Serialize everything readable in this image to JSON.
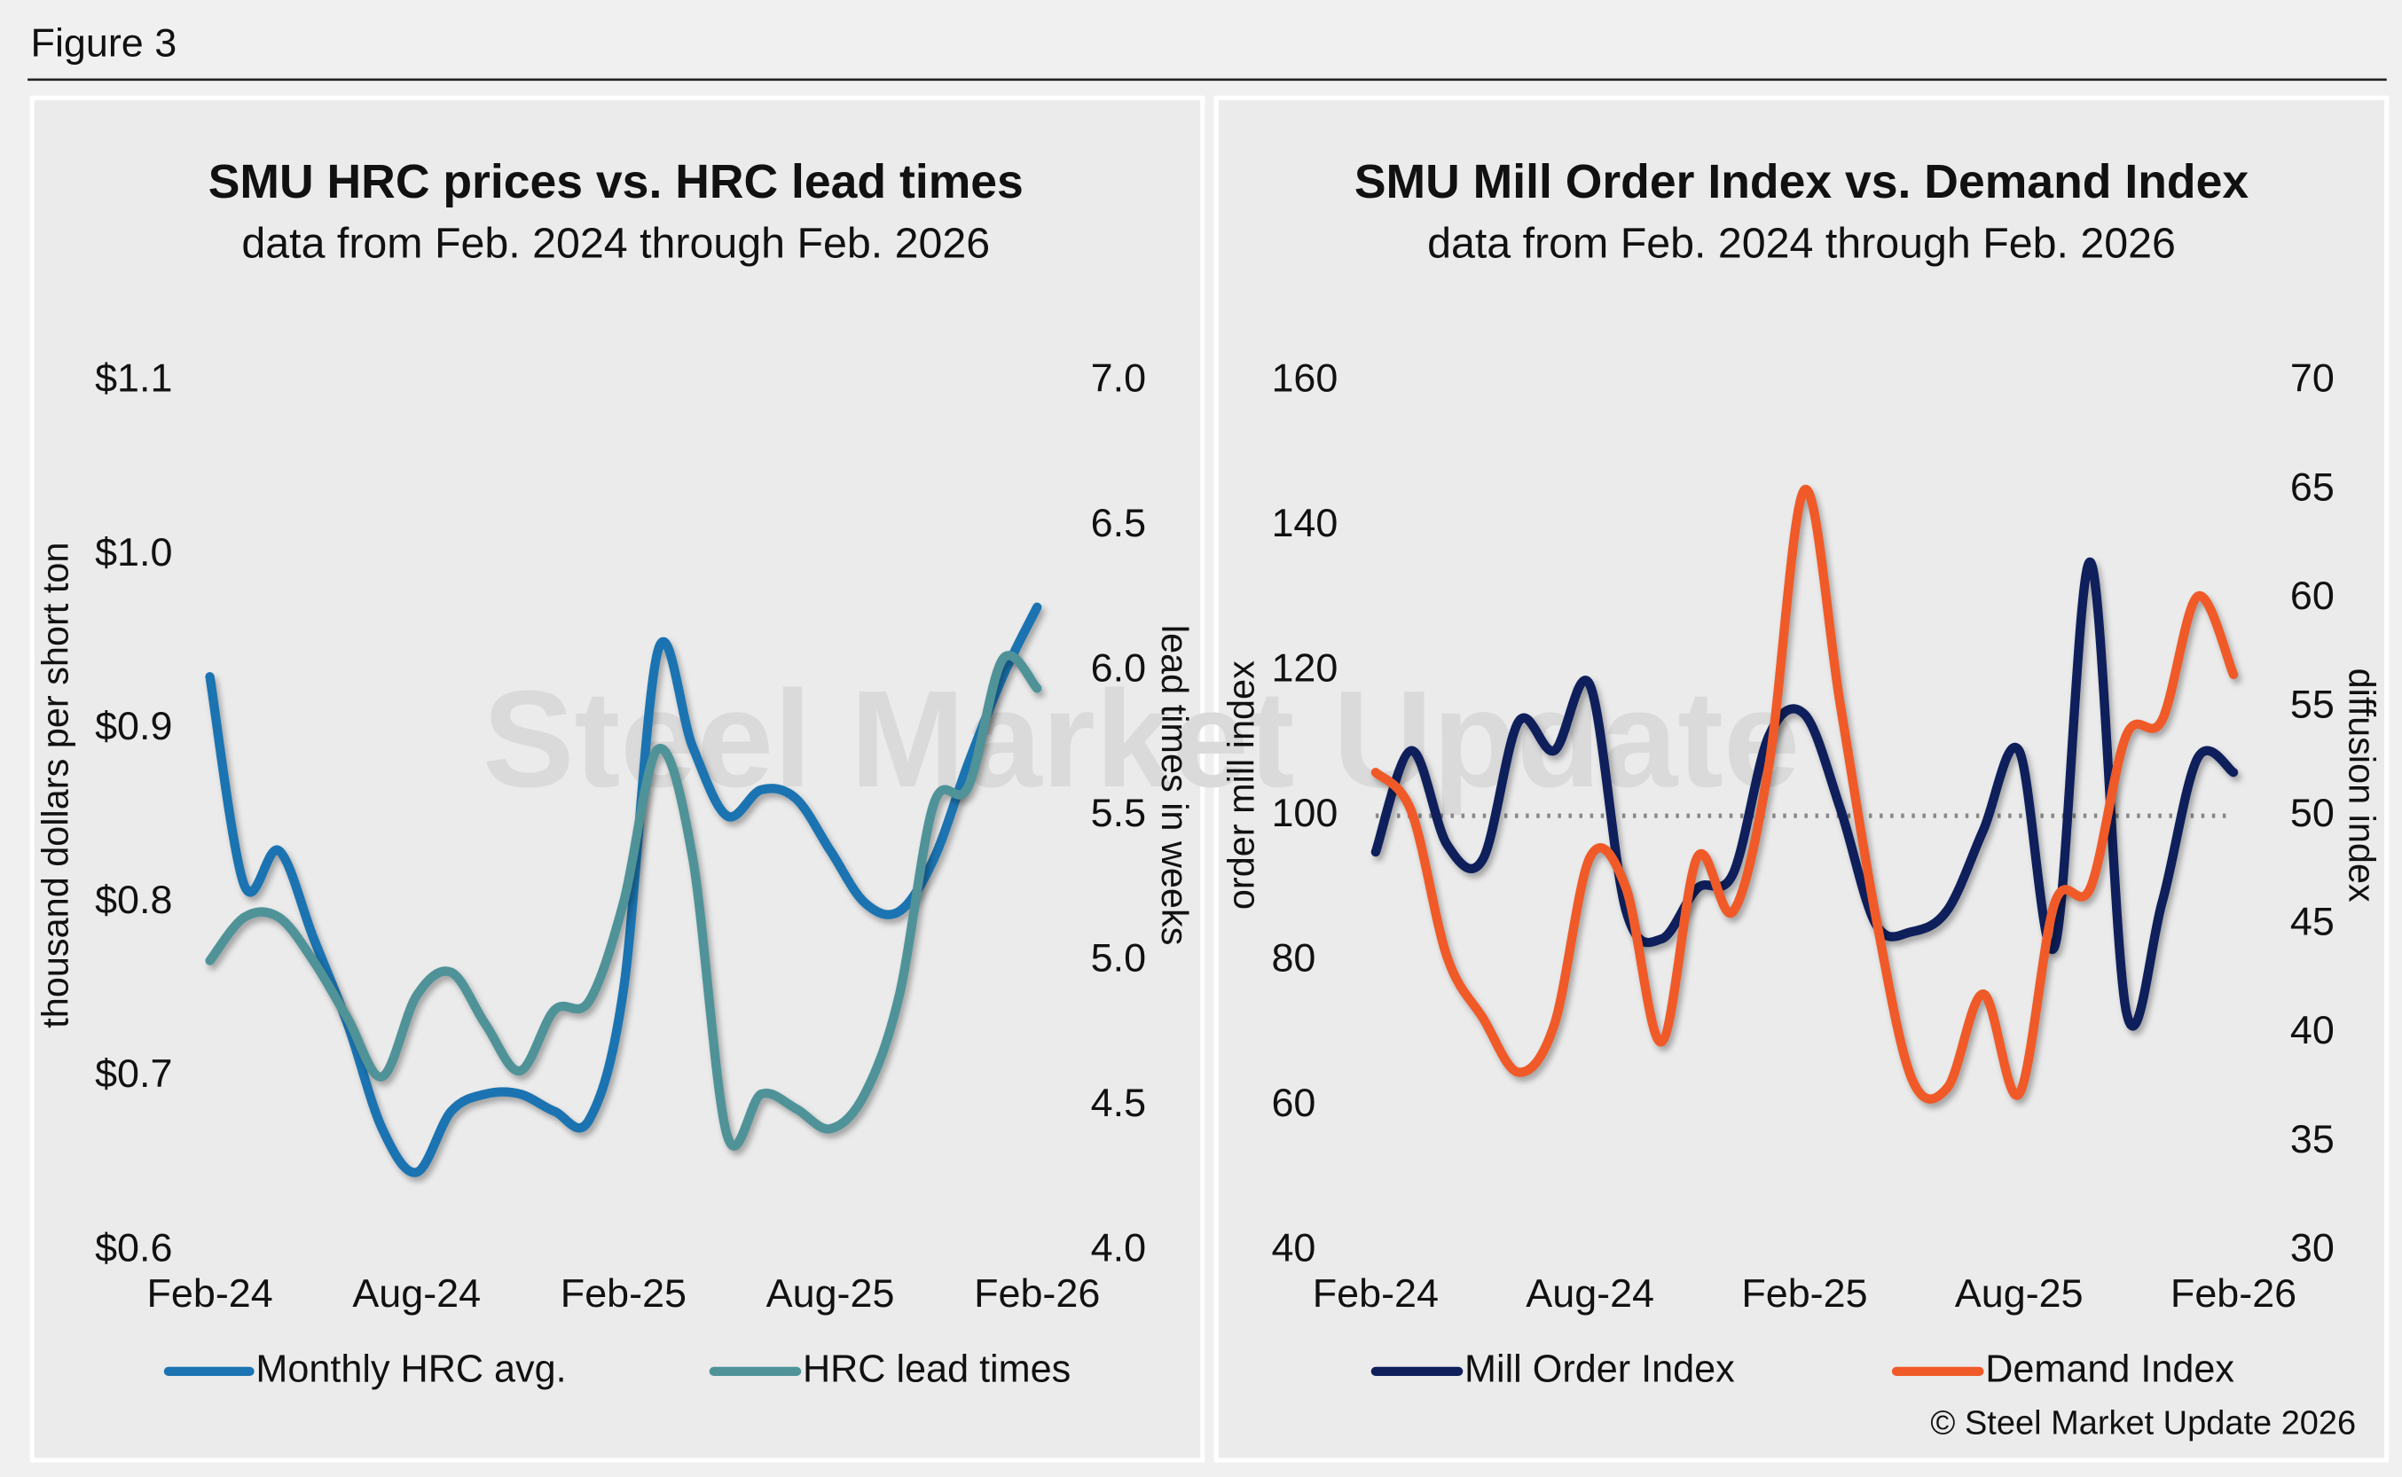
{
  "figure_label": "Figure 3",
  "copyright": "© Steel Market Update 2026",
  "watermark": "Steel Market Update",
  "chart_data": [
    {
      "type": "line",
      "title": "SMU HRC prices vs. HRC lead times",
      "subtitle": "data from Feb. 2024 through Feb. 2026",
      "y_label": "thousand dollars per short ton",
      "y2_label": "lead times in weeks",
      "categories": [
        "Feb-24",
        null,
        null,
        null,
        null,
        null,
        "Aug-24",
        null,
        null,
        null,
        null,
        null,
        "Feb-25",
        null,
        null,
        null,
        null,
        null,
        "Aug-25",
        null,
        null,
        null,
        null,
        null,
        "Feb-26"
      ],
      "ylim": [
        0.6,
        1.1
      ],
      "yticks": [
        {
          "value": 0.6,
          "label": "$0.6"
        },
        {
          "value": 0.7,
          "label": "$0.7"
        },
        {
          "value": 0.8,
          "label": "$0.8"
        },
        {
          "value": 0.9,
          "label": "$0.9"
        },
        {
          "value": 1.0,
          "label": "$1.0"
        },
        {
          "value": 1.1,
          "label": "$1.1"
        }
      ],
      "y2lim": [
        4,
        7
      ],
      "y2ticks": [
        {
          "value": 4,
          "label": "4.0"
        },
        4.5,
        {
          "value": 5,
          "label": "5.0"
        },
        5.5,
        {
          "value": 6,
          "label": "6.0"
        },
        6.5,
        {
          "value": 7,
          "label": "7.0"
        }
      ],
      "series": [
        {
          "name": "Monthly HRC avg.",
          "color": "#1b74b1",
          "values": [
            0.93,
            0.81,
            0.83,
            0.78,
            0.73,
            0.67,
            0.645,
            0.68,
            0.69,
            0.69,
            0.68,
            0.675,
            0.75,
            0.945,
            0.89,
            0.85,
            0.865,
            0.86,
            0.83,
            0.8,
            0.795,
            0.825,
            0.88,
            0.93,
            0.97
          ]
        },
        {
          "name": "HRC lead times",
          "color": "#4f9399",
          "axis": "y2",
          "values": [
            5.0,
            5.15,
            5.15,
            5.0,
            4.8,
            4.6,
            4.88,
            4.96,
            4.78,
            4.62,
            4.83,
            4.86,
            5.2,
            5.73,
            5.36,
            4.4,
            4.54,
            4.49,
            4.42,
            4.54,
            4.88,
            5.54,
            5.6,
            6.04,
            5.94
          ]
        }
      ]
    },
    {
      "type": "line",
      "title": "SMU Mill Order Index vs. Demand Index",
      "subtitle": "data from Feb. 2024 through Feb. 2026",
      "y_label": "order mill index",
      "y2_label": "diffusion index",
      "categories": [
        "Feb-24",
        null,
        null,
        null,
        null,
        null,
        "Aug-24",
        null,
        null,
        null,
        null,
        null,
        "Feb-25",
        null,
        null,
        null,
        null,
        null,
        "Aug-25",
        null,
        null,
        null,
        null,
        null,
        "Feb-26"
      ],
      "ylim": [
        40,
        160
      ],
      "yticks": [
        40,
        60,
        80,
        100,
        120,
        140,
        160
      ],
      "y2lim": [
        30,
        70
      ],
      "y2ticks": [
        30,
        35,
        40,
        45,
        50,
        55,
        60,
        65,
        70
      ],
      "reference_line": 100,
      "series": [
        {
          "name": "Mill Order Index",
          "color": "#0e1f5b",
          "values": [
            95,
            109,
            96,
            94,
            113,
            109,
            118,
            87,
            83,
            90,
            92,
            111,
            114,
            101,
            85,
            84,
            87,
            98,
            109,
            82,
            135,
            73,
            88,
            108,
            106
          ]
        },
        {
          "name": "Demand Index",
          "color": "#f05a28",
          "axis": "y2",
          "values": [
            52,
            50.2,
            43.5,
            40.7,
            38.2,
            40.4,
            48.1,
            46.7,
            39.6,
            48.1,
            45.6,
            52.3,
            65,
            55.1,
            45.3,
            37.9,
            37.5,
            41.8,
            37.2,
            46,
            46.7,
            53.7,
            54.4,
            60.1,
            56.5
          ]
        }
      ]
    }
  ]
}
